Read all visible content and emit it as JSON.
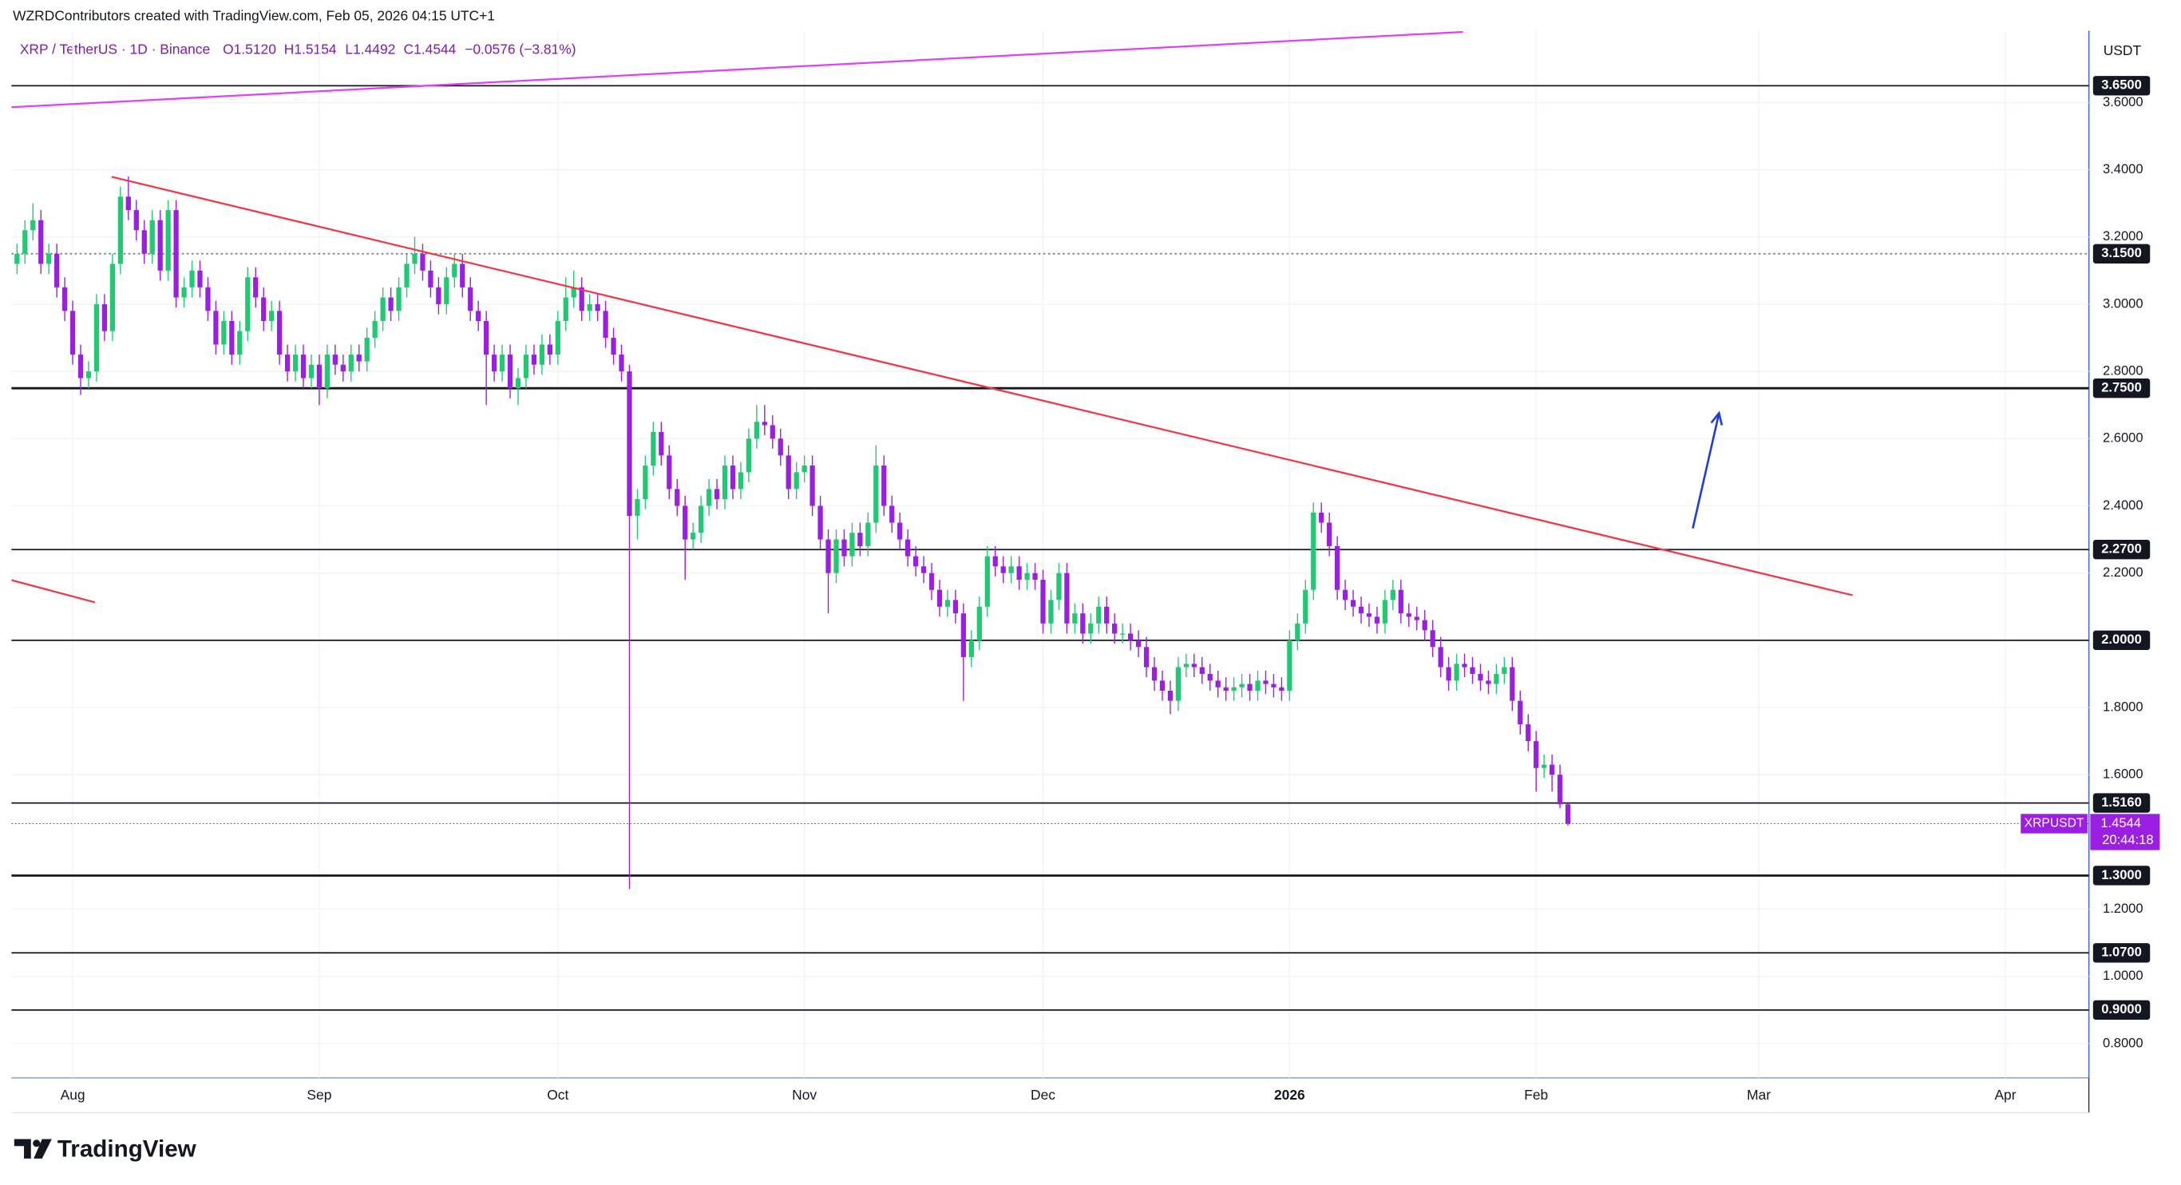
{
  "header": {
    "credit": "WZRDContributors created with TradingView.com, Feb 05, 2026 04:15 UTC+1"
  },
  "chart_data": {
    "type": "candlestick",
    "legend": {
      "symbol": "XRP / TetherUS · 1D · Binance",
      "open": "O1.5120",
      "high": "H1.5154",
      "low": "L1.4492",
      "close": "C1.4544",
      "change": "−0.0576 (−3.81%)"
    },
    "y_axis_label": "USDT",
    "up_color": "#22c974",
    "down_color": "#9b1fe0",
    "grid": true,
    "xlim": [
      -0.7,
      260.5
    ],
    "ylim": [
      0.698,
      3.814
    ],
    "xticks": [
      {
        "value": 7,
        "label": "Aug"
      },
      {
        "value": 38,
        "label": "Sep"
      },
      {
        "value": 68,
        "label": "Oct"
      },
      {
        "value": 99,
        "label": "Nov"
      },
      {
        "value": 129,
        "label": "Dec"
      },
      {
        "value": 160,
        "label": "2026"
      },
      {
        "value": 191,
        "label": "Feb"
      },
      {
        "value": 219,
        "label": "Mar"
      },
      {
        "value": 250,
        "label": "Apr"
      }
    ],
    "yticks": [
      {
        "value": 0.8,
        "label": "0.8000"
      },
      {
        "value": 1.0,
        "label": "1.0000"
      },
      {
        "value": 1.2,
        "label": "1.2000"
      },
      {
        "value": 1.6,
        "label": "1.6000"
      },
      {
        "value": 1.8,
        "label": "1.8000"
      },
      {
        "value": 2.2,
        "label": "2.2000"
      },
      {
        "value": 2.4,
        "label": "2.4000"
      },
      {
        "value": 2.6,
        "label": "2.6000"
      },
      {
        "value": 2.8,
        "label": "2.8000"
      },
      {
        "value": 3.0,
        "label": "3.0000"
      },
      {
        "value": 3.2,
        "label": "3.2000"
      },
      {
        "value": 3.4,
        "label": "3.4000"
      },
      {
        "value": 3.6,
        "label": "3.6000"
      }
    ],
    "levels": [
      {
        "value": 3.65,
        "label": "3.6500",
        "style": "thin"
      },
      {
        "value": 3.15,
        "label": "3.1500",
        "style": "dotted"
      },
      {
        "value": 2.75,
        "label": "2.7500",
        "style": "thick"
      },
      {
        "value": 2.27,
        "label": "2.2700",
        "style": "thin"
      },
      {
        "value": 2.0,
        "label": "2.0000",
        "style": "thin"
      },
      {
        "value": 1.516,
        "label": "1.5160",
        "style": "thin"
      },
      {
        "value": 1.3,
        "label": "1.3000",
        "style": "thick"
      },
      {
        "value": 1.07,
        "label": "1.0700",
        "style": "thin"
      },
      {
        "value": 0.9,
        "label": "0.9000",
        "style": "thin"
      }
    ],
    "current_price": {
      "name": "XRPUSDT",
      "value": 1.4544,
      "label": "1.4544",
      "countdown": "20:44:18",
      "color": "#9b1fe0"
    },
    "drawings": [
      {
        "kind": "line",
        "color": "#f23645",
        "x": [
          11.9,
          230.8
        ],
        "y": [
          3.379,
          2.134
        ]
      },
      {
        "kind": "line",
        "color": "#e040fb",
        "x": [
          -0.7,
          181.8
        ],
        "y": [
          3.586,
          3.81
        ]
      },
      {
        "kind": "line",
        "color": "#f23645",
        "x": [
          -0.7,
          9.8
        ],
        "y": [
          2.179,
          2.113
        ]
      },
      {
        "kind": "arrow",
        "color": "#1e3fd6",
        "x": [
          210.7,
          214.0
        ],
        "y": [
          2.333,
          2.676
        ]
      }
    ],
    "candles": [
      [
        3.12,
        3.18,
        3.09,
        3.15
      ],
      [
        3.15,
        3.25,
        3.12,
        3.22
      ],
      [
        3.22,
        3.3,
        3.19,
        3.25
      ],
      [
        3.25,
        3.28,
        3.09,
        3.12
      ],
      [
        3.12,
        3.18,
        3.09,
        3.15
      ],
      [
        3.15,
        3.18,
        3.02,
        3.05
      ],
      [
        3.05,
        3.08,
        2.95,
        2.98
      ],
      [
        2.98,
        3.01,
        2.82,
        2.85
      ],
      [
        2.85,
        2.88,
        2.73,
        2.78
      ],
      [
        2.78,
        2.83,
        2.75,
        2.8
      ],
      [
        2.8,
        3.03,
        2.77,
        3.0
      ],
      [
        3.0,
        3.03,
        2.89,
        2.92
      ],
      [
        2.92,
        3.15,
        2.89,
        3.12
      ],
      [
        3.12,
        3.35,
        3.09,
        3.32
      ],
      [
        3.32,
        3.38,
        3.25,
        3.28
      ],
      [
        3.28,
        3.31,
        3.19,
        3.22
      ],
      [
        3.22,
        3.25,
        3.12,
        3.15
      ],
      [
        3.15,
        3.28,
        3.12,
        3.25
      ],
      [
        3.25,
        3.28,
        3.07,
        3.1
      ],
      [
        3.1,
        3.31,
        3.07,
        3.28
      ],
      [
        3.28,
        3.31,
        2.99,
        3.02
      ],
      [
        3.02,
        3.08,
        2.99,
        3.05
      ],
      [
        3.05,
        3.13,
        3.02,
        3.1
      ],
      [
        3.1,
        3.13,
        3.02,
        3.05
      ],
      [
        3.05,
        3.08,
        2.95,
        2.98
      ],
      [
        2.98,
        3.01,
        2.85,
        2.88
      ],
      [
        2.88,
        2.98,
        2.85,
        2.95
      ],
      [
        2.95,
        2.98,
        2.82,
        2.85
      ],
      [
        2.85,
        2.95,
        2.82,
        2.92
      ],
      [
        2.92,
        3.11,
        2.89,
        3.08
      ],
      [
        3.08,
        3.11,
        2.99,
        3.02
      ],
      [
        3.02,
        3.05,
        2.92,
        2.95
      ],
      [
        2.95,
        3.01,
        2.92,
        2.98
      ],
      [
        2.98,
        3.01,
        2.82,
        2.85
      ],
      [
        2.85,
        2.88,
        2.77,
        2.8
      ],
      [
        2.8,
        2.88,
        2.77,
        2.85
      ],
      [
        2.85,
        2.88,
        2.75,
        2.78
      ],
      [
        2.78,
        2.85,
        2.75,
        2.82
      ],
      [
        2.82,
        2.85,
        2.7,
        2.75
      ],
      [
        2.75,
        2.88,
        2.72,
        2.85
      ],
      [
        2.85,
        2.88,
        2.79,
        2.82
      ],
      [
        2.82,
        2.85,
        2.77,
        2.8
      ],
      [
        2.8,
        2.88,
        2.77,
        2.85
      ],
      [
        2.85,
        2.88,
        2.8,
        2.83
      ],
      [
        2.83,
        2.93,
        2.8,
        2.9
      ],
      [
        2.9,
        2.98,
        2.87,
        2.95
      ],
      [
        2.95,
        3.05,
        2.92,
        3.02
      ],
      [
        3.02,
        3.05,
        2.95,
        2.98
      ],
      [
        2.98,
        3.08,
        2.95,
        3.05
      ],
      [
        3.05,
        3.15,
        3.02,
        3.12
      ],
      [
        3.12,
        3.2,
        3.09,
        3.15
      ],
      [
        3.15,
        3.18,
        3.07,
        3.1
      ],
      [
        3.1,
        3.13,
        3.02,
        3.05
      ],
      [
        3.05,
        3.08,
        2.97,
        3.0
      ],
      [
        3.0,
        3.11,
        2.97,
        3.08
      ],
      [
        3.08,
        3.15,
        3.05,
        3.12
      ],
      [
        3.12,
        3.15,
        3.02,
        3.05
      ],
      [
        3.05,
        3.08,
        2.95,
        2.98
      ],
      [
        2.98,
        3.01,
        2.92,
        2.95
      ],
      [
        2.95,
        2.98,
        2.7,
        2.85
      ],
      [
        2.85,
        2.88,
        2.77,
        2.8
      ],
      [
        2.8,
        2.88,
        2.77,
        2.85
      ],
      [
        2.85,
        2.88,
        2.72,
        2.75
      ],
      [
        2.75,
        2.81,
        2.7,
        2.78
      ],
      [
        2.78,
        2.88,
        2.75,
        2.85
      ],
      [
        2.85,
        2.88,
        2.79,
        2.82
      ],
      [
        2.82,
        2.91,
        2.79,
        2.88
      ],
      [
        2.88,
        2.91,
        2.82,
        2.85
      ],
      [
        2.85,
        2.98,
        2.82,
        2.95
      ],
      [
        2.95,
        3.08,
        2.92,
        3.02
      ],
      [
        3.02,
        3.1,
        2.99,
        3.05
      ],
      [
        3.05,
        3.08,
        2.95,
        2.98
      ],
      [
        2.98,
        3.03,
        2.95,
        3.0
      ],
      [
        3.0,
        3.03,
        2.95,
        2.98
      ],
      [
        2.98,
        3.01,
        2.87,
        2.9
      ],
      [
        2.9,
        2.93,
        2.82,
        2.85
      ],
      [
        2.85,
        2.88,
        2.77,
        2.8
      ],
      [
        2.8,
        2.82,
        1.26,
        2.37
      ],
      [
        2.37,
        2.45,
        2.3,
        2.42
      ],
      [
        2.42,
        2.55,
        2.39,
        2.52
      ],
      [
        2.52,
        2.65,
        2.49,
        2.62
      ],
      [
        2.62,
        2.65,
        2.52,
        2.55
      ],
      [
        2.55,
        2.58,
        2.42,
        2.45
      ],
      [
        2.45,
        2.48,
        2.37,
        2.4
      ],
      [
        2.4,
        2.43,
        2.18,
        2.3
      ],
      [
        2.3,
        2.35,
        2.27,
        2.32
      ],
      [
        2.32,
        2.43,
        2.29,
        2.4
      ],
      [
        2.4,
        2.48,
        2.37,
        2.45
      ],
      [
        2.45,
        2.48,
        2.39,
        2.42
      ],
      [
        2.42,
        2.55,
        2.39,
        2.52
      ],
      [
        2.52,
        2.55,
        2.42,
        2.45
      ],
      [
        2.45,
        2.53,
        2.42,
        2.5
      ],
      [
        2.5,
        2.63,
        2.47,
        2.6
      ],
      [
        2.6,
        2.7,
        2.57,
        2.65
      ],
      [
        2.65,
        2.7,
        2.61,
        2.64
      ],
      [
        2.64,
        2.67,
        2.57,
        2.6
      ],
      [
        2.6,
        2.63,
        2.52,
        2.55
      ],
      [
        2.55,
        2.58,
        2.42,
        2.45
      ],
      [
        2.45,
        2.53,
        2.42,
        2.5
      ],
      [
        2.5,
        2.55,
        2.47,
        2.52
      ],
      [
        2.52,
        2.55,
        2.37,
        2.4
      ],
      [
        2.4,
        2.43,
        2.27,
        2.3
      ],
      [
        2.3,
        2.33,
        2.08,
        2.2
      ],
      [
        2.2,
        2.33,
        2.17,
        2.3
      ],
      [
        2.3,
        2.33,
        2.22,
        2.25
      ],
      [
        2.25,
        2.35,
        2.22,
        2.32
      ],
      [
        2.32,
        2.35,
        2.25,
        2.28
      ],
      [
        2.28,
        2.38,
        2.25,
        2.35
      ],
      [
        2.35,
        2.58,
        2.32,
        2.52
      ],
      [
        2.52,
        2.55,
        2.37,
        2.4
      ],
      [
        2.4,
        2.43,
        2.32,
        2.35
      ],
      [
        2.35,
        2.38,
        2.27,
        2.3
      ],
      [
        2.3,
        2.33,
        2.22,
        2.25
      ],
      [
        2.25,
        2.28,
        2.19,
        2.22
      ],
      [
        2.22,
        2.25,
        2.17,
        2.2
      ],
      [
        2.2,
        2.23,
        2.12,
        2.15
      ],
      [
        2.15,
        2.18,
        2.07,
        2.1
      ],
      [
        2.1,
        2.15,
        2.07,
        2.12
      ],
      [
        2.12,
        2.15,
        2.05,
        2.08
      ],
      [
        2.08,
        2.11,
        1.82,
        1.95
      ],
      [
        1.95,
        2.03,
        1.92,
        2.0
      ],
      [
        2.0,
        2.13,
        1.97,
        2.1
      ],
      [
        2.1,
        2.28,
        2.07,
        2.25
      ],
      [
        2.25,
        2.28,
        2.19,
        2.22
      ],
      [
        2.22,
        2.25,
        2.17,
        2.2
      ],
      [
        2.2,
        2.25,
        2.17,
        2.22
      ],
      [
        2.22,
        2.25,
        2.15,
        2.18
      ],
      [
        2.18,
        2.23,
        2.15,
        2.2
      ],
      [
        2.2,
        2.23,
        2.15,
        2.18
      ],
      [
        2.18,
        2.21,
        2.02,
        2.05
      ],
      [
        2.05,
        2.15,
        2.02,
        2.12
      ],
      [
        2.12,
        2.23,
        2.09,
        2.2
      ],
      [
        2.2,
        2.23,
        2.02,
        2.05
      ],
      [
        2.05,
        2.11,
        2.02,
        2.08
      ],
      [
        2.08,
        2.11,
        1.99,
        2.02
      ],
      [
        2.02,
        2.08,
        1.99,
        2.05
      ],
      [
        2.05,
        2.13,
        2.02,
        2.1
      ],
      [
        2.1,
        2.13,
        2.02,
        2.05
      ],
      [
        2.05,
        2.08,
        1.99,
        2.02
      ],
      [
        2.02,
        2.05,
        1.99,
        2.02
      ],
      [
        2.02,
        2.05,
        1.97,
        2.0
      ],
      [
        2.0,
        2.03,
        1.95,
        1.98
      ],
      [
        1.98,
        2.01,
        1.89,
        1.92
      ],
      [
        1.92,
        1.95,
        1.85,
        1.88
      ],
      [
        1.88,
        1.91,
        1.82,
        1.85
      ],
      [
        1.85,
        1.88,
        1.78,
        1.82
      ],
      [
        1.82,
        1.95,
        1.79,
        1.92
      ],
      [
        1.92,
        1.96,
        1.89,
        1.93
      ],
      [
        1.93,
        1.96,
        1.89,
        1.92
      ],
      [
        1.92,
        1.95,
        1.87,
        1.9
      ],
      [
        1.9,
        1.93,
        1.85,
        1.88
      ],
      [
        1.88,
        1.91,
        1.83,
        1.86
      ],
      [
        1.86,
        1.89,
        1.82,
        1.85
      ],
      [
        1.85,
        1.89,
        1.82,
        1.86
      ],
      [
        1.86,
        1.9,
        1.83,
        1.87
      ],
      [
        1.87,
        1.9,
        1.82,
        1.85
      ],
      [
        1.85,
        1.91,
        1.82,
        1.88
      ],
      [
        1.88,
        1.91,
        1.84,
        1.87
      ],
      [
        1.87,
        1.9,
        1.83,
        1.86
      ],
      [
        1.86,
        1.89,
        1.82,
        1.85
      ],
      [
        1.85,
        2.03,
        1.82,
        2.0
      ],
      [
        2.0,
        2.08,
        1.97,
        2.05
      ],
      [
        2.05,
        2.18,
        2.02,
        2.15
      ],
      [
        2.15,
        2.41,
        2.12,
        2.38
      ],
      [
        2.38,
        2.41,
        2.32,
        2.35
      ],
      [
        2.35,
        2.38,
        2.25,
        2.28
      ],
      [
        2.28,
        2.31,
        2.12,
        2.15
      ],
      [
        2.15,
        2.18,
        2.09,
        2.12
      ],
      [
        2.12,
        2.15,
        2.07,
        2.1
      ],
      [
        2.1,
        2.13,
        2.05,
        2.08
      ],
      [
        2.08,
        2.11,
        2.04,
        2.07
      ],
      [
        2.07,
        2.1,
        2.02,
        2.05
      ],
      [
        2.05,
        2.15,
        2.02,
        2.12
      ],
      [
        2.12,
        2.18,
        2.09,
        2.15
      ],
      [
        2.15,
        2.18,
        2.05,
        2.08
      ],
      [
        2.08,
        2.11,
        2.04,
        2.07
      ],
      [
        2.07,
        2.1,
        2.03,
        2.06
      ],
      [
        2.06,
        2.09,
        2.0,
        2.03
      ],
      [
        2.03,
        2.06,
        1.95,
        1.98
      ],
      [
        1.98,
        2.01,
        1.89,
        1.92
      ],
      [
        1.92,
        1.95,
        1.85,
        1.88
      ],
      [
        1.88,
        1.96,
        1.85,
        1.93
      ],
      [
        1.93,
        1.96,
        1.89,
        1.92
      ],
      [
        1.92,
        1.95,
        1.87,
        1.9
      ],
      [
        1.9,
        1.93,
        1.85,
        1.88
      ],
      [
        1.88,
        1.91,
        1.84,
        1.87
      ],
      [
        1.87,
        1.93,
        1.84,
        1.9
      ],
      [
        1.9,
        1.95,
        1.87,
        1.92
      ],
      [
        1.92,
        1.95,
        1.79,
        1.82
      ],
      [
        1.82,
        1.85,
        1.72,
        1.75
      ],
      [
        1.75,
        1.78,
        1.67,
        1.7
      ],
      [
        1.7,
        1.73,
        1.55,
        1.62
      ],
      [
        1.62,
        1.66,
        1.59,
        1.63
      ],
      [
        1.63,
        1.66,
        1.55,
        1.6
      ],
      [
        1.6,
        1.63,
        1.5,
        1.512
      ],
      [
        1.512,
        1.5154,
        1.4492,
        1.4544
      ]
    ]
  },
  "footer": {
    "brand": "TradingView"
  }
}
